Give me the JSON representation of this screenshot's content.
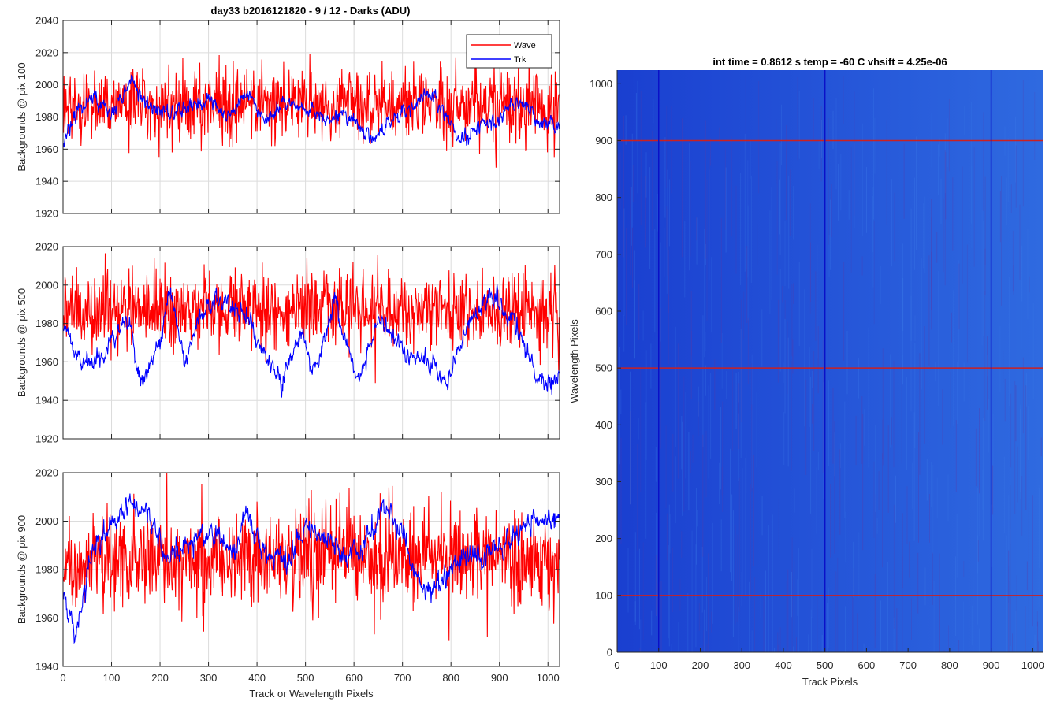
{
  "figure": {
    "title": "day33 b2016121820 - 9 / 12 - Darks (ADU)"
  },
  "chart_data": [
    {
      "type": "line",
      "title": "day33 b2016121820 - 9 / 12 - Darks (ADU)",
      "xlabel": "",
      "ylabel": "Backgrounds @ pix 100",
      "xlim": [
        0,
        1024
      ],
      "ylim": [
        1920,
        2040
      ],
      "xticks": [
        0,
        100,
        200,
        300,
        400,
        500,
        600,
        700,
        800,
        900,
        1000
      ],
      "yticks": [
        1920,
        1940,
        1960,
        1980,
        2000,
        2020,
        2040
      ],
      "show_xtick_labels": false,
      "grid": true,
      "legend": "top-right",
      "series": [
        {
          "name": "Wave",
          "color": "#ff0000",
          "mean": 1988,
          "noise_sd": 11,
          "drift": [
            [
              0,
              0
            ],
            [
              1024,
              0
            ]
          ],
          "min_seen": 1937,
          "max_seen": 2020
        },
        {
          "name": "Trk",
          "color": "#0000ff",
          "mean": 1984,
          "noise_sd": 5,
          "drift": [
            [
              0,
              -22
            ],
            [
              30,
              0
            ],
            [
              60,
              8
            ],
            [
              100,
              -2
            ],
            [
              140,
              18
            ],
            [
              180,
              2
            ],
            [
              220,
              -2
            ],
            [
              260,
              2
            ],
            [
              300,
              8
            ],
            [
              340,
              -4
            ],
            [
              380,
              10
            ],
            [
              420,
              -6
            ],
            [
              460,
              4
            ],
            [
              500,
              2
            ],
            [
              540,
              -4
            ],
            [
              580,
              -2
            ],
            [
              640,
              -18
            ],
            [
              670,
              -8
            ],
            [
              700,
              -2
            ],
            [
              760,
              12
            ],
            [
              820,
              -20
            ],
            [
              860,
              -8
            ],
            [
              900,
              -2
            ],
            [
              940,
              6
            ],
            [
              980,
              -6
            ],
            [
              1024,
              -10
            ]
          ]
        }
      ]
    },
    {
      "type": "line",
      "xlabel": "",
      "ylabel": "Backgrounds @ pix 500",
      "xlim": [
        0,
        1024
      ],
      "ylim": [
        1920,
        2020
      ],
      "xticks": [
        0,
        100,
        200,
        300,
        400,
        500,
        600,
        700,
        800,
        900,
        1000
      ],
      "yticks": [
        1920,
        1940,
        1960,
        1980,
        2000,
        2020
      ],
      "show_xtick_labels": false,
      "grid": true,
      "series": [
        {
          "name": "Wave",
          "color": "#ff0000",
          "mean": 1987,
          "noise_sd": 10,
          "drift": [
            [
              0,
              0
            ],
            [
              1024,
              0
            ]
          ]
        },
        {
          "name": "Trk",
          "color": "#0000ff",
          "mean": 1978,
          "noise_sd": 5,
          "drift": [
            [
              0,
              2
            ],
            [
              30,
              -16
            ],
            [
              60,
              -20
            ],
            [
              100,
              -6
            ],
            [
              130,
              8
            ],
            [
              160,
              -30
            ],
            [
              200,
              -8
            ],
            [
              220,
              22
            ],
            [
              250,
              -20
            ],
            [
              280,
              6
            ],
            [
              320,
              14
            ],
            [
              370,
              8
            ],
            [
              420,
              -16
            ],
            [
              450,
              -28
            ],
            [
              490,
              -4
            ],
            [
              520,
              -22
            ],
            [
              560,
              10
            ],
            [
              610,
              -28
            ],
            [
              650,
              6
            ],
            [
              700,
              -12
            ],
            [
              750,
              -18
            ],
            [
              790,
              -30
            ],
            [
              840,
              4
            ],
            [
              880,
              18
            ],
            [
              930,
              4
            ],
            [
              980,
              -28
            ],
            [
              1024,
              -28
            ]
          ]
        }
      ]
    },
    {
      "type": "line",
      "xlabel": "Track or Wavelength Pixels",
      "ylabel": "Backgrounds @ pix 900",
      "xlim": [
        0,
        1024
      ],
      "ylim": [
        1940,
        2020
      ],
      "xticks": [
        0,
        100,
        200,
        300,
        400,
        500,
        600,
        700,
        800,
        900,
        1000
      ],
      "yticks": [
        1940,
        1960,
        1980,
        2000,
        2020
      ],
      "show_xtick_labels": true,
      "grid": true,
      "series": [
        {
          "name": "Wave",
          "color": "#ff0000",
          "mean": 1985,
          "noise_sd": 10,
          "drift": [
            [
              0,
              0
            ],
            [
              1024,
              0
            ]
          ]
        },
        {
          "name": "Trk",
          "color": "#0000ff",
          "mean": 1988,
          "noise_sd": 5,
          "drift": [
            [
              0,
              -16
            ],
            [
              25,
              -36
            ],
            [
              60,
              0
            ],
            [
              100,
              10
            ],
            [
              140,
              20
            ],
            [
              180,
              14
            ],
            [
              220,
              -4
            ],
            [
              260,
              4
            ],
            [
              300,
              8
            ],
            [
              350,
              -2
            ],
            [
              380,
              14
            ],
            [
              420,
              -2
            ],
            [
              460,
              -6
            ],
            [
              500,
              10
            ],
            [
              540,
              4
            ],
            [
              580,
              -2
            ],
            [
              620,
              0
            ],
            [
              660,
              18
            ],
            [
              700,
              6
            ],
            [
              740,
              -16
            ],
            [
              780,
              -14
            ],
            [
              810,
              -4
            ],
            [
              850,
              -4
            ],
            [
              900,
              0
            ],
            [
              940,
              8
            ],
            [
              980,
              12
            ],
            [
              1024,
              14
            ]
          ]
        }
      ]
    },
    {
      "type": "heatmap",
      "title": "int time = 0.8612 s    temp = -60 C    vhsift = 4.25e-06",
      "xlabel": "Track Pixels",
      "ylabel": "Wavelength Pixels",
      "xlim": [
        0,
        1024
      ],
      "ylim": [
        0,
        1024
      ],
      "xticks": [
        0,
        100,
        200,
        300,
        400,
        500,
        600,
        700,
        800,
        900,
        1000
      ],
      "yticks": [
        0,
        100,
        200,
        300,
        400,
        500,
        600,
        700,
        800,
        900,
        1000
      ],
      "colors": {
        "low": "#1a3fd0",
        "high": "#2f6ae0",
        "streak": "#5a3aa8"
      },
      "horizontal_markers": {
        "values": [
          100,
          500,
          900
        ],
        "color": "#cc2020"
      },
      "vertical_markers": {
        "values": [
          100,
          500,
          900
        ],
        "color": "#0a10c8"
      }
    }
  ]
}
